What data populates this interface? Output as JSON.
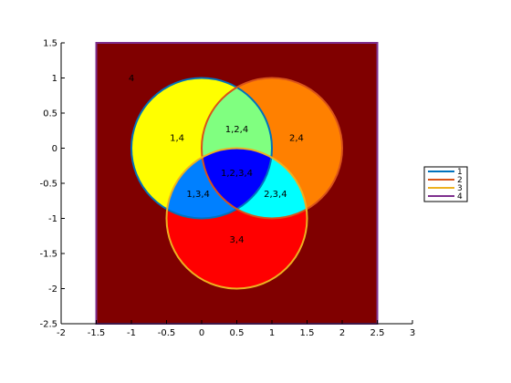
{
  "chart_data": {
    "type": "venn",
    "title": "",
    "xlabel": "",
    "ylabel": "",
    "xlim": [
      -2,
      3
    ],
    "ylim": [
      -2.5,
      1.5
    ],
    "x_ticks": [
      "-2",
      "-1.5",
      "-1",
      "-0.5",
      "0",
      "0.5",
      "1",
      "1.5",
      "2",
      "2.5",
      "3"
    ],
    "y_ticks": [
      "1.5",
      "1",
      "0.5",
      "0",
      "-0.5",
      "-1",
      "-1.5",
      "-2",
      "-2.5"
    ],
    "grid": false,
    "legend_position": "right",
    "sets": [
      {
        "name": "1",
        "shape": "circle",
        "cx": 0,
        "cy": 0,
        "r": 1,
        "outline_color": "#0072BD"
      },
      {
        "name": "2",
        "shape": "circle",
        "cx": 1,
        "cy": 0,
        "r": 1,
        "outline_color": "#D95319"
      },
      {
        "name": "3",
        "shape": "circle",
        "cx": 0.5,
        "cy": -1,
        "r": 1,
        "outline_color": "#EDB120"
      },
      {
        "name": "4",
        "shape": "rectangle",
        "x0": -1.5,
        "x1": 2.5,
        "y0": -2.5,
        "y1": 1.5,
        "outline_color": "#7E2F8E"
      }
    ],
    "regions": [
      {
        "label": "4",
        "x": -1,
        "y": 1,
        "color": "#800000"
      },
      {
        "label": "1,4",
        "x": -0.35,
        "y": 0.15,
        "color": "#FFFF00"
      },
      {
        "label": "2,4",
        "x": 1.35,
        "y": 0.15,
        "color": "#FF8000"
      },
      {
        "label": "1,2,4",
        "x": 0.5,
        "y": 0.27,
        "color": "#80FF80"
      },
      {
        "label": "1,3,4",
        "x": -0.05,
        "y": -0.65,
        "color": "#0080FF"
      },
      {
        "label": "2,3,4",
        "x": 1.05,
        "y": -0.65,
        "color": "#00FFFF"
      },
      {
        "label": "1,2,3,4",
        "x": 0.5,
        "y": -0.35,
        "color": "#0000FF"
      },
      {
        "label": "3,4",
        "x": 0.5,
        "y": -1.3,
        "color": "#FF0000"
      }
    ]
  }
}
